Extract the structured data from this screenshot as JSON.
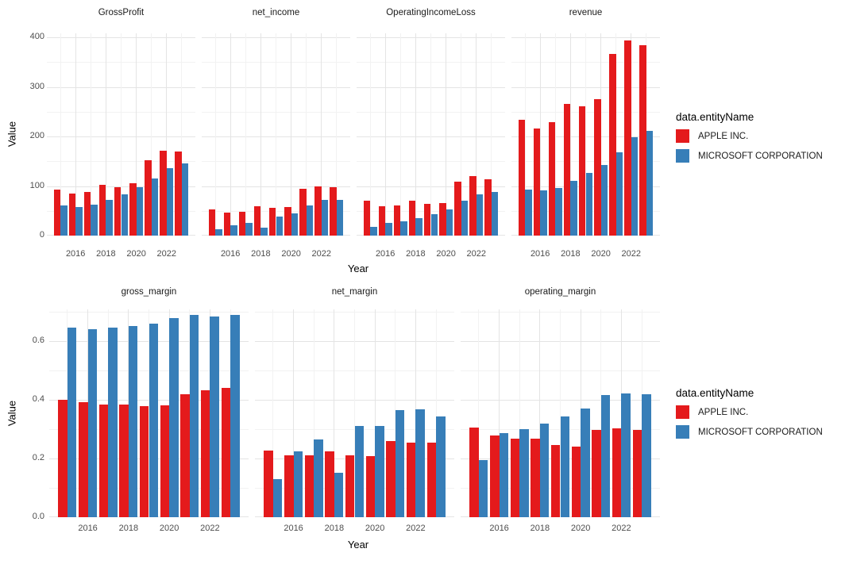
{
  "legend": {
    "title": "data.entityName",
    "items": [
      {
        "label": "APPLE INC.",
        "color": "#E41A1C"
      },
      {
        "label": "MICROSOFT CORPORATION",
        "color": "#377EB8"
      }
    ]
  },
  "chart_data": [
    {
      "type": "bar",
      "row": "top",
      "xlabel": "Year",
      "ylabel": "Value",
      "x": [
        2015,
        2016,
        2017,
        2018,
        2019,
        2020,
        2021,
        2022,
        2023
      ],
      "x_ticks": [
        2016,
        2018,
        2020,
        2022
      ],
      "ylim": [
        0,
        408
      ],
      "yticks": [
        0,
        100,
        200,
        300,
        400
      ],
      "ytick_labels": [
        "0",
        "100",
        "200",
        "300",
        "400"
      ],
      "grid": true,
      "legend_position": "right",
      "facets": [
        {
          "title": "GrossProfit",
          "series": [
            {
              "name": "APPLE INC.",
              "values": [
                93.6,
                84.3,
                88.2,
                101.8,
                98.4,
                104.9,
                152.8,
                170.8,
                169.1
              ]
            },
            {
              "name": "MICROSOFT CORPORATION",
              "values": [
                60.5,
                58.4,
                62.3,
                72.0,
                82.9,
                96.9,
                115.9,
                135.6,
                146.1
              ]
            }
          ]
        },
        {
          "title": "net_income",
          "series": [
            {
              "name": "APPLE INC.",
              "values": [
                53.4,
                45.7,
                48.4,
                59.5,
                55.3,
                57.4,
                94.7,
                99.8,
                97.0
              ]
            },
            {
              "name": "MICROSOFT CORPORATION",
              "values": [
                12.2,
                20.5,
                25.5,
                16.6,
                39.2,
                44.3,
                61.3,
                72.7,
                72.4
              ]
            }
          ]
        },
        {
          "title": "OperatingIncomeLoss",
          "series": [
            {
              "name": "APPLE INC.",
              "values": [
                71.2,
                60.0,
                61.3,
                70.9,
                63.9,
                66.3,
                108.9,
                119.4,
                114.3
              ]
            },
            {
              "name": "MICROSOFT CORPORATION",
              "values": [
                18.2,
                26.1,
                29.0,
                35.1,
                43.0,
                53.0,
                69.9,
                83.4,
                88.5
              ]
            }
          ]
        },
        {
          "title": "revenue",
          "series": [
            {
              "name": "APPLE INC.",
              "values": [
                233.7,
                215.6,
                229.2,
                265.6,
                260.2,
                274.5,
                365.8,
                394.3,
                383.3
              ]
            },
            {
              "name": "MICROSOFT CORPORATION",
              "values": [
                93.6,
                91.2,
                96.6,
                110.4,
                125.8,
                143.0,
                168.1,
                198.3,
                211.9
              ]
            }
          ]
        }
      ]
    },
    {
      "type": "bar",
      "row": "bottom",
      "xlabel": "Year",
      "ylabel": "Value",
      "x": [
        2015,
        2016,
        2017,
        2018,
        2019,
        2020,
        2021,
        2022,
        2023
      ],
      "x_ticks": [
        2016,
        2018,
        2020,
        2022
      ],
      "ylim": [
        0,
        0.708
      ],
      "yticks": [
        0,
        0.2,
        0.4,
        0.6
      ],
      "ytick_labels": [
        "0.0",
        "0.2",
        "0.4",
        "0.6"
      ],
      "grid": true,
      "legend_position": "right",
      "facets": [
        {
          "title": "gross_margin",
          "series": [
            {
              "name": "APPLE INC.",
              "values": [
                0.401,
                0.391,
                0.385,
                0.383,
                0.378,
                0.382,
                0.418,
                0.433,
                0.441
              ]
            },
            {
              "name": "MICROSOFT CORPORATION",
              "values": [
                0.646,
                0.64,
                0.645,
                0.652,
                0.659,
                0.678,
                0.689,
                0.684,
                0.689
              ]
            }
          ]
        },
        {
          "title": "net_margin",
          "series": [
            {
              "name": "APPLE INC.",
              "values": [
                0.228,
                0.212,
                0.211,
                0.224,
                0.212,
                0.209,
                0.259,
                0.253,
                0.253
              ]
            },
            {
              "name": "MICROSOFT CORPORATION",
              "values": [
                0.13,
                0.225,
                0.264,
                0.15,
                0.312,
                0.31,
                0.365,
                0.367,
                0.342
              ]
            }
          ]
        },
        {
          "title": "operating_margin",
          "series": [
            {
              "name": "APPLE INC.",
              "values": [
                0.305,
                0.278,
                0.267,
                0.267,
                0.246,
                0.241,
                0.298,
                0.303,
                0.298
              ]
            },
            {
              "name": "MICROSOFT CORPORATION",
              "values": [
                0.194,
                0.286,
                0.3,
                0.318,
                0.342,
                0.37,
                0.416,
                0.421,
                0.418
              ]
            }
          ]
        }
      ]
    }
  ]
}
